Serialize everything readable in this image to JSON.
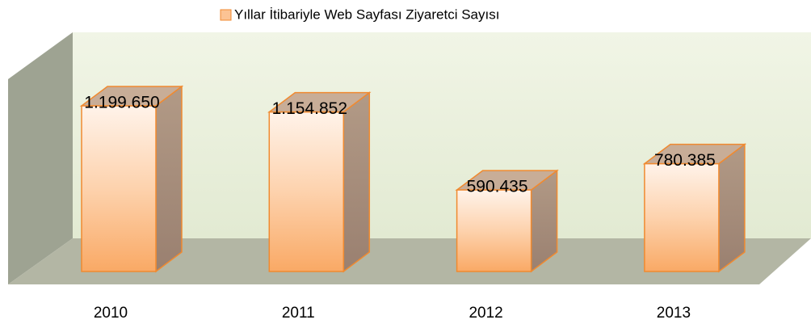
{
  "chart_data": {
    "type": "bar3d",
    "series": [
      {
        "name": "Yıllar İtibariyle Web Sayfası Ziyaretci Sayısı",
        "color": "#f7a15a",
        "values": [
          1199650,
          1154852,
          590435,
          780385
        ],
        "value_labels": [
          "1.199.650",
          "1.154.852",
          "590.435",
          "780.385"
        ]
      }
    ],
    "categories": [
      "2010",
      "2011",
      "2012",
      "2013"
    ],
    "legend": "top"
  }
}
